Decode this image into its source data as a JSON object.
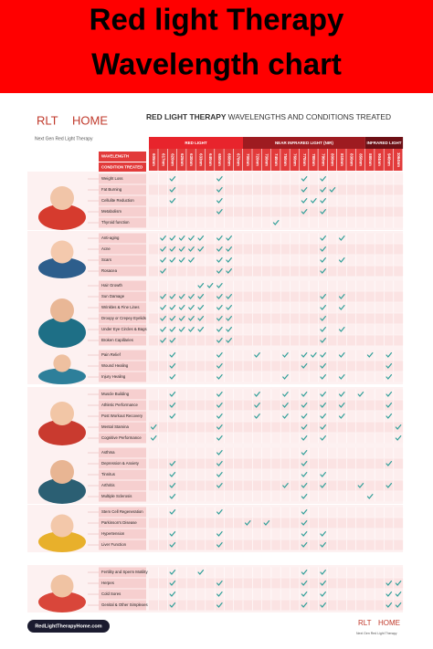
{
  "header": {
    "title_line1": "Red light Therapy",
    "title_line2": "Wavelength chart"
  },
  "logo": {
    "brand_left": "RLT",
    "brand_right": "HOME",
    "tagline": "Next Gen Red Light Therapy"
  },
  "table": {
    "title_bold": "RED LIGHT THERAPY",
    "title_rest": "WAVELENGTHS AND CONDITIONS TREATED",
    "row_headers": [
      "WAVELENGTH",
      "CONDITION TREATED"
    ],
    "bands": [
      {
        "label": "RED LIGHT",
        "wavelengths": [
          "605nm",
          "617nm",
          "620nm",
          "625nm",
          "630nm",
          "633nm",
          "640nm",
          "650nm",
          "660nm",
          "670nm"
        ]
      },
      {
        "label": "NEAR INFRARED LIGHT (NIR)",
        "wavelengths": [
          "700nm",
          "720nm",
          "730nm",
          "740nm",
          "750nm",
          "760nm",
          "770nm",
          "780nm",
          "790nm",
          "800nm",
          "810nm",
          "830nm",
          "850nm"
        ]
      },
      {
        "label": "INFRARED LIGHT",
        "wavelengths": [
          "880nm",
          "904nm",
          "940nm",
          "1064nm"
        ]
      }
    ],
    "sections": [
      {
        "conditions": [
          {
            "name": "Weight Loss",
            "checks": [
              2,
              7,
              16,
              18
            ]
          },
          {
            "name": "Fat Burning",
            "checks": [
              2,
              7,
              16,
              18,
              19
            ]
          },
          {
            "name": "Cellulite Reduction",
            "checks": [
              2,
              7,
              16,
              17,
              18
            ]
          },
          {
            "name": "Metabolism",
            "checks": [
              7,
              16,
              18
            ]
          },
          {
            "name": "Thyroid function",
            "checks": [
              13
            ]
          }
        ]
      },
      {
        "conditions": [
          {
            "name": "Anti-aging",
            "checks": [
              1,
              2,
              3,
              4,
              5,
              7,
              8,
              18,
              20
            ]
          },
          {
            "name": "Acne",
            "checks": [
              1,
              2,
              3,
              4,
              5,
              7,
              8,
              18
            ]
          },
          {
            "name": "Scars",
            "checks": [
              1,
              2,
              3,
              4,
              7,
              8,
              18,
              20
            ]
          },
          {
            "name": "Rosacea",
            "checks": [
              1,
              7,
              8,
              18
            ]
          }
        ]
      },
      {
        "conditions": [
          {
            "name": "Hair Growth",
            "checks": [
              5,
              6,
              7
            ]
          },
          {
            "name": "Sun Damage",
            "checks": [
              1,
              2,
              3,
              4,
              5,
              7,
              8,
              18,
              20
            ]
          },
          {
            "name": "Wrinkles & Fine Lines",
            "checks": [
              1,
              2,
              3,
              4,
              5,
              7,
              8,
              18,
              20
            ]
          },
          {
            "name": "Droopy or Crepey Eyelids",
            "checks": [
              1,
              2,
              3,
              4,
              5,
              7,
              8,
              18
            ]
          },
          {
            "name": "Under Eye Circles & Bags",
            "checks": [
              1,
              2,
              3,
              4,
              5,
              7,
              8,
              18,
              20
            ]
          },
          {
            "name": "Broken Capillaries",
            "checks": [
              1,
              2,
              7,
              8,
              18
            ]
          }
        ]
      },
      {
        "conditions": [
          {
            "name": "Pain Relief",
            "checks": [
              2,
              7,
              11,
              14,
              16,
              17,
              18,
              20,
              23,
              25
            ]
          },
          {
            "name": "Wound Healing",
            "checks": [
              2,
              7,
              16,
              18,
              25
            ]
          },
          {
            "name": "Injury Healing",
            "checks": [
              2,
              7,
              14,
              18,
              20,
              25
            ]
          }
        ]
      },
      {
        "conditions": [
          {
            "name": "Muscle Building",
            "checks": [
              2,
              7,
              11,
              14,
              16,
              18,
              20,
              22,
              25
            ]
          },
          {
            "name": "Athletic Performance",
            "checks": [
              2,
              7,
              11,
              14,
              16,
              18,
              20,
              25
            ]
          },
          {
            "name": "Post Workout Recovery",
            "checks": [
              2,
              7,
              11,
              14,
              16,
              18,
              20,
              25
            ]
          },
          {
            "name": "Mental Stamina",
            "checks": [
              0,
              7,
              16,
              18,
              26
            ]
          },
          {
            "name": "Cognitive Performance",
            "checks": [
              0,
              7,
              16,
              18,
              26
            ]
          }
        ]
      },
      {
        "conditions": [
          {
            "name": "Asthma",
            "checks": [
              7,
              16
            ]
          },
          {
            "name": "Depression & Anxiety",
            "checks": [
              2,
              7,
              16,
              25
            ]
          },
          {
            "name": "Tinnitus",
            "checks": [
              2,
              7,
              16,
              18
            ]
          },
          {
            "name": "Arthritis",
            "checks": [
              2,
              7,
              14,
              16,
              18,
              22,
              25
            ]
          },
          {
            "name": "Multiple Sclerosis",
            "checks": [
              2,
              16,
              23
            ]
          }
        ]
      },
      {
        "conditions": [
          {
            "name": "Stem Cell Regeneration",
            "checks": [
              2,
              7,
              16
            ]
          },
          {
            "name": "Parkinson's Disease",
            "checks": [
              10,
              12,
              16
            ]
          },
          {
            "name": "Hypertension",
            "checks": [
              2,
              7,
              16,
              18
            ]
          },
          {
            "name": "Liver Function",
            "checks": [
              2,
              7,
              16,
              18
            ]
          }
        ]
      },
      {
        "conditions": [
          {
            "name": "Fertility and Sperm Motility",
            "checks": [
              2,
              5,
              16,
              18
            ]
          },
          {
            "name": "Herpes",
            "checks": [
              2,
              7,
              16,
              18,
              25,
              26
            ]
          },
          {
            "name": "Cold Sores",
            "checks": [
              2,
              7,
              16,
              18,
              25,
              26
            ]
          },
          {
            "name": "Genital & Other Simplexes",
            "checks": [
              2,
              7,
              16,
              18,
              25,
              26
            ]
          }
        ]
      }
    ]
  },
  "footer": {
    "website": "RedLightTherapyHome.com"
  }
}
